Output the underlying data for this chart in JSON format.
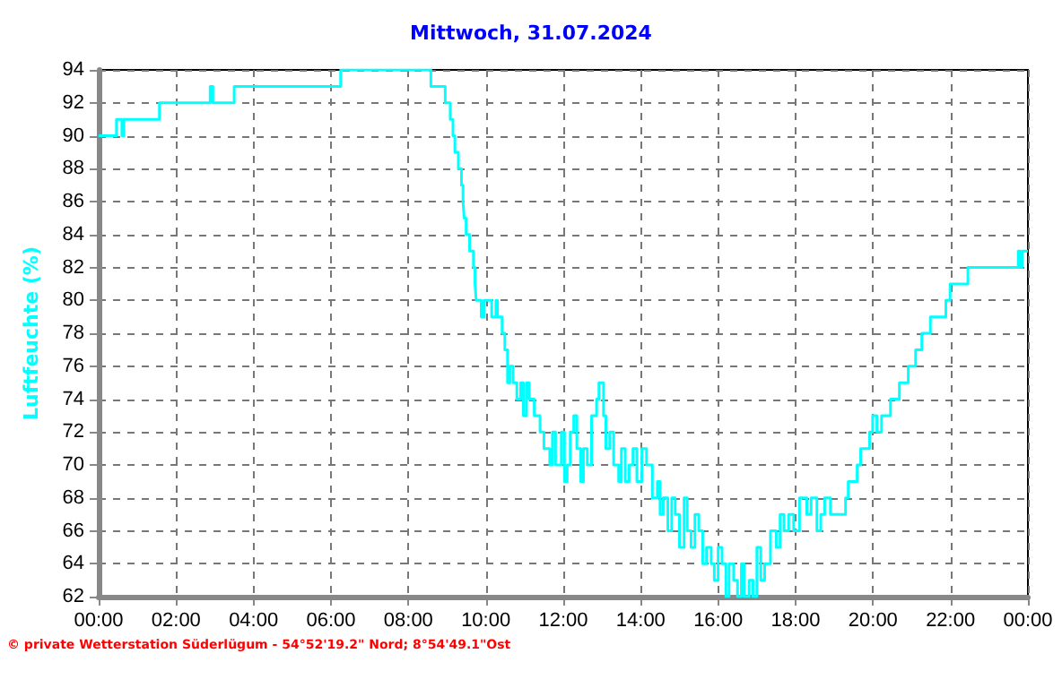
{
  "chart_data": {
    "type": "step",
    "title": "Mittwoch, 31.07.2024",
    "ylabel": "Luftfeuchte (%)",
    "annotations": [
      "© private Wetterstation Süderlügum - 54°52'19.2\" Nord; 8°54'49.1\"Ost"
    ],
    "x": [
      0,
      0.46,
      0.6,
      0.65,
      1.57,
      2.88,
      2.95,
      3.5,
      6.25,
      8.58,
      8.95,
      9.08,
      9.15,
      9.2,
      9.29,
      9.37,
      9.41,
      9.44,
      9.49,
      9.58,
      9.68,
      9.72,
      9.75,
      9.88,
      9.95,
      10.15,
      10.26,
      10.3,
      10.42,
      10.49,
      10.56,
      10.62,
      10.7,
      10.8,
      10.9,
      10.97,
      11.05,
      11.12,
      11.25,
      11.4,
      11.5,
      11.65,
      11.72,
      11.8,
      11.95,
      12.03,
      12.1,
      12.18,
      12.27,
      12.35,
      12.45,
      12.52,
      12.62,
      12.73,
      12.86,
      12.92,
      13.04,
      13.1,
      13.2,
      13.3,
      13.43,
      13.5,
      13.6,
      13.7,
      13.8,
      13.9,
      14.03,
      14.15,
      14.3,
      14.43,
      14.5,
      14.58,
      14.7,
      14.8,
      14.89,
      15.0,
      15.12,
      15.2,
      15.3,
      15.4,
      15.5,
      15.6,
      15.7,
      15.82,
      15.9,
      16.0,
      16.1,
      16.2,
      16.28,
      16.4,
      16.5,
      16.6,
      16.67,
      16.8,
      16.9,
      17.0,
      17.1,
      17.2,
      17.35,
      17.5,
      17.6,
      17.7,
      17.82,
      17.95,
      18.1,
      18.29,
      18.4,
      18.55,
      18.65,
      18.75,
      18.9,
      19.29,
      19.36,
      19.59,
      19.68,
      19.91,
      19.99,
      20.1,
      20.22,
      20.45,
      20.68,
      20.91,
      21.1,
      21.26,
      21.48,
      21.88,
      21.99,
      22.45,
      23.75,
      23.8,
      23.85,
      24
    ],
    "series": [
      {
        "color": "#00ffff",
        "values": [
          90,
          91,
          90,
          91,
          92,
          93,
          92,
          93,
          94,
          93,
          92,
          91,
          90,
          89,
          88,
          87,
          86,
          85,
          84,
          83,
          82,
          81,
          80,
          79,
          80,
          79,
          80,
          79,
          78,
          77,
          75,
          76,
          75,
          74,
          75,
          73,
          75,
          74,
          73,
          72,
          71,
          70,
          72,
          70,
          72,
          69,
          70,
          72,
          73,
          71,
          69,
          71,
          70,
          73,
          74,
          75,
          73,
          71,
          72,
          70,
          69,
          71,
          69,
          70,
          71,
          69,
          71,
          70,
          68,
          69,
          67,
          68,
          66,
          68,
          67,
          65,
          68,
          66,
          65,
          67,
          66,
          64,
          65,
          64,
          63,
          65,
          64,
          62,
          64,
          63,
          62,
          64,
          62,
          63,
          62,
          65,
          63,
          64,
          66,
          65,
          67,
          66,
          67,
          66,
          68,
          67,
          68,
          66,
          67,
          68,
          67,
          68,
          69,
          70,
          71,
          72,
          73,
          72,
          73,
          74,
          75,
          76,
          77,
          78,
          79,
          80,
          81,
          82,
          83,
          82,
          83,
          83
        ]
      }
    ],
    "xlim": [
      0,
      24
    ],
    "ylim": [
      62,
      94
    ],
    "xticks": [
      {
        "value": 0,
        "label": "00:00"
      },
      {
        "value": 2,
        "label": "02:00"
      },
      {
        "value": 4,
        "label": "04:00"
      },
      {
        "value": 6,
        "label": "06:00"
      },
      {
        "value": 8,
        "label": "08:00"
      },
      {
        "value": 10,
        "label": "10:00"
      },
      {
        "value": 12,
        "label": "12:00"
      },
      {
        "value": 14,
        "label": "14:00"
      },
      {
        "value": 16,
        "label": "16:00"
      },
      {
        "value": 18,
        "label": "18:00"
      },
      {
        "value": 20,
        "label": "20:00"
      },
      {
        "value": 22,
        "label": "22:00"
      },
      {
        "value": 24,
        "label": "00:00"
      }
    ],
    "yticks": [
      62,
      64,
      66,
      68,
      70,
      72,
      74,
      76,
      78,
      80,
      82,
      84,
      86,
      88,
      90,
      92,
      94
    ],
    "grid": true,
    "marker": "none",
    "line_style": "solid"
  }
}
